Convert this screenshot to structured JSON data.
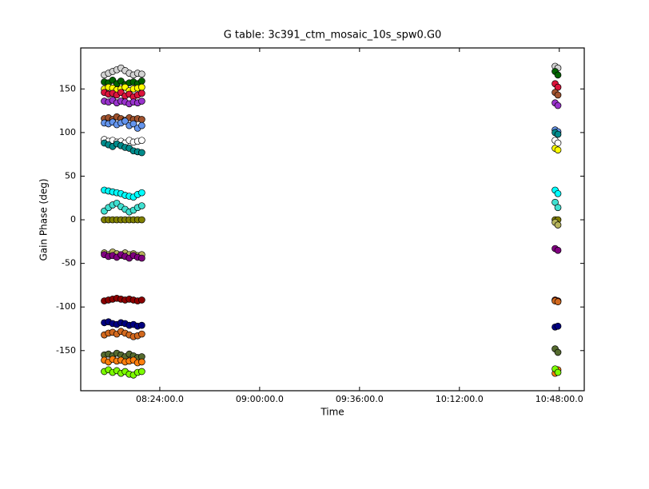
{
  "chart_data": {
    "type": "scatter",
    "title": "G table: 3c391_ctm_mosaic_10s_spw0.G0",
    "x_label": "Time",
    "y_label": "Gain Phase (deg)",
    "xlim": [
      475.5,
      657
    ],
    "ylim": [
      -196,
      197
    ],
    "xticks": [
      {
        "value": 504,
        "label": "08:24:00.0"
      },
      {
        "value": 540,
        "label": "09:00:00.0"
      },
      {
        "value": 576,
        "label": "09:36:00.0"
      },
      {
        "value": 612,
        "label": "10:12:00.0"
      },
      {
        "value": 648,
        "label": "10:48:00.0"
      }
    ],
    "yticks": [
      -150,
      -100,
      -50,
      0,
      50,
      100,
      150
    ],
    "x": [
      484,
      485.5,
      487,
      488.5,
      490,
      491.5,
      493,
      494.5,
      496,
      497.5,
      646.5,
      647.5
    ],
    "series": [
      {
        "color": "#d3d3d3",
        "values": [
          166,
          168,
          170,
          172,
          174,
          171,
          168,
          166,
          168,
          167,
          176,
          174
        ]
      },
      {
        "color": "#006400",
        "values": [
          158,
          157,
          160,
          156,
          159,
          155,
          157,
          158,
          156,
          159,
          170,
          166
        ]
      },
      {
        "color": "#ffff00",
        "values": [
          150,
          152,
          151,
          149,
          150,
          152,
          148,
          150,
          151,
          152,
          82,
          80
        ]
      },
      {
        "color": "#dc143c",
        "values": [
          146,
          144,
          145,
          143,
          146,
          142,
          144,
          141,
          143,
          145,
          156,
          152
        ]
      },
      {
        "color": "#9932cc",
        "values": [
          136,
          135,
          137,
          134,
          136,
          135,
          133,
          135,
          134,
          136,
          134,
          131
        ]
      },
      {
        "color": "#a0522d",
        "values": [
          116,
          117,
          115,
          118,
          116,
          114,
          117,
          115,
          116,
          115,
          146,
          143
        ]
      },
      {
        "color": "#6495ed",
        "values": [
          111,
          110,
          112,
          109,
          111,
          113,
          108,
          110,
          105,
          108,
          103,
          101
        ]
      },
      {
        "color": "#ffffff",
        "values": [
          92,
          90,
          91,
          89,
          90,
          88,
          91,
          89,
          90,
          91,
          91,
          88
        ]
      },
      {
        "color": "#008b8b",
        "values": [
          88,
          86,
          84,
          87,
          85,
          83,
          82,
          79,
          78,
          77,
          100,
          98
        ]
      },
      {
        "color": "#00ffff",
        "values": [
          34,
          33,
          32,
          31,
          30,
          28,
          27,
          26,
          29,
          31,
          34,
          30
        ]
      },
      {
        "color": "#40e0d0",
        "values": [
          10,
          14,
          17,
          19,
          15,
          12,
          9,
          11,
          14,
          16,
          20,
          14
        ]
      },
      {
        "color": "#808000",
        "values": [
          0,
          0,
          0,
          0,
          0,
          0,
          0,
          0,
          0,
          0,
          0,
          0
        ]
      },
      {
        "color": "#b5b35c",
        "values": [
          -38,
          -40,
          -37,
          -39,
          -41,
          -38,
          -40,
          -39,
          -41,
          -40,
          -3,
          -6
        ]
      },
      {
        "color": "#800080",
        "values": [
          -40,
          -42,
          -41,
          -43,
          -40,
          -42,
          -44,
          -41,
          -43,
          -44,
          -33,
          -35
        ]
      },
      {
        "color": "#8b0000",
        "values": [
          -93,
          -92,
          -91,
          -90,
          -91,
          -92,
          -91,
          -92,
          -93,
          -92,
          -92,
          -93
        ]
      },
      {
        "color": "#000080",
        "values": [
          -118,
          -117,
          -119,
          -120,
          -118,
          -119,
          -121,
          -120,
          -122,
          -121,
          -123,
          -122
        ]
      },
      {
        "color": "#d2691e",
        "values": [
          -132,
          -130,
          -129,
          -131,
          -128,
          -130,
          -132,
          -134,
          -133,
          -131,
          -93,
          -94
        ]
      },
      {
        "color": "#556b2f",
        "values": [
          -155,
          -154,
          -156,
          -153,
          -155,
          -157,
          -154,
          -156,
          -158,
          -157,
          -148,
          -152
        ]
      },
      {
        "color": "#ff7f0e",
        "values": [
          -161,
          -163,
          -160,
          -162,
          -161,
          -163,
          -162,
          -161,
          -164,
          -163,
          -176,
          -172
        ]
      },
      {
        "color": "#7cfc00",
        "values": [
          -174,
          -172,
          -175,
          -173,
          -176,
          -174,
          -177,
          -178,
          -175,
          -174,
          -171,
          -175
        ]
      }
    ]
  }
}
